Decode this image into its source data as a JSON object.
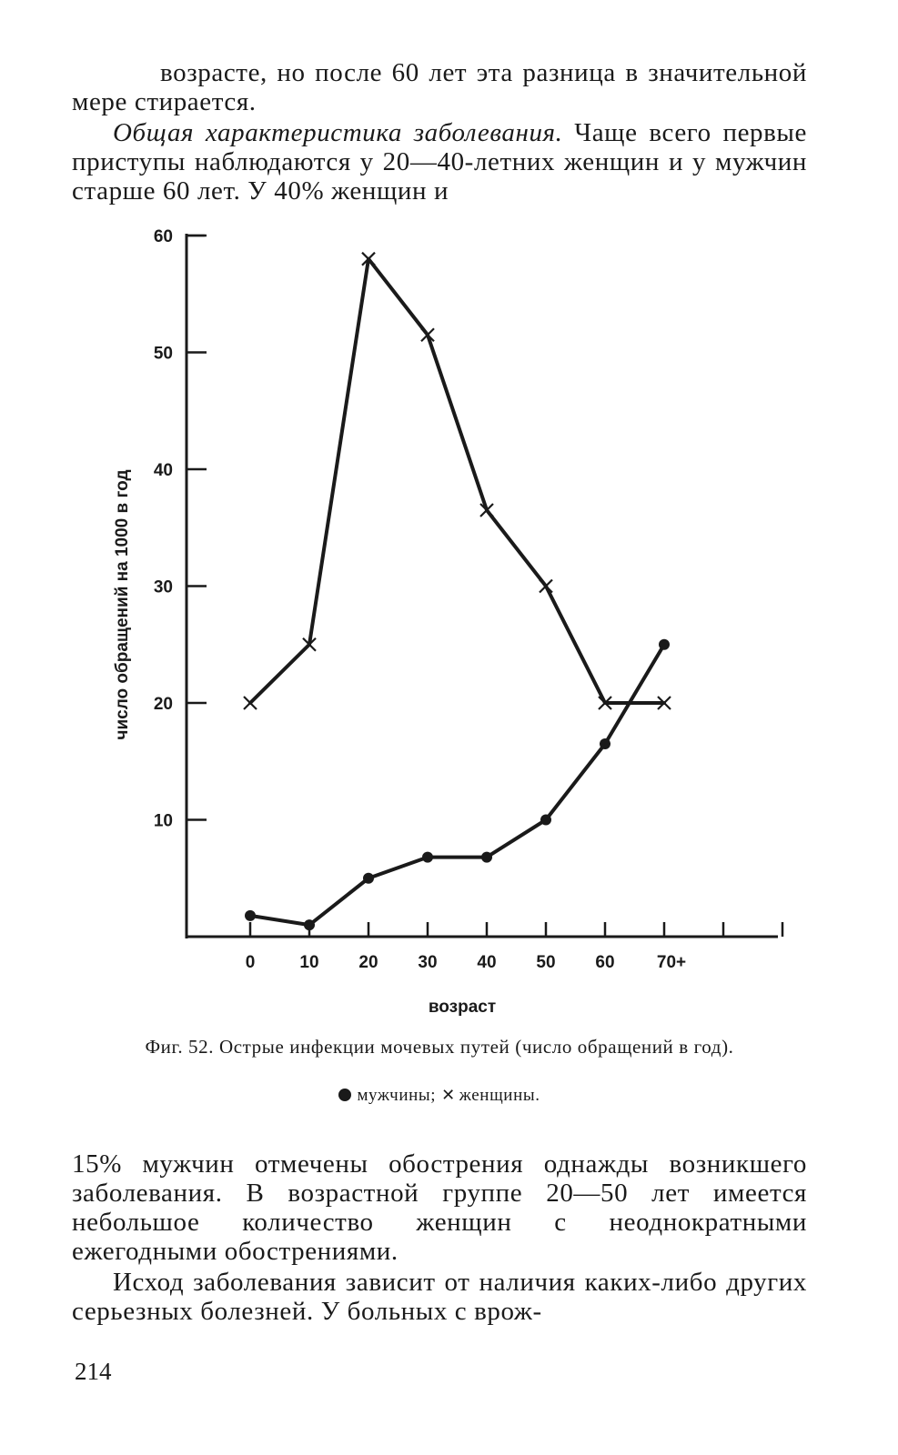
{
  "text_top": {
    "line1": "возрасте, но после 60 лет эта разница в значительной мере стирается.",
    "para2_italic": "Общая характеристика заболевания.",
    "para2_rest": " Чаще всего первые приступы наблюдаются у 20—40-летних женщин и у мужчин старше 60 лет. У 40% женщин и"
  },
  "chart_data": {
    "type": "line",
    "categories": [
      "0",
      "10",
      "20",
      "30",
      "40",
      "50",
      "60",
      "70+"
    ],
    "x": [
      0,
      10,
      20,
      30,
      40,
      50,
      60,
      70
    ],
    "series": [
      {
        "name": "женщины",
        "marker": "x",
        "values": [
          20,
          25,
          58,
          51.5,
          36.5,
          30,
          20,
          20
        ]
      },
      {
        "name": "мужчины",
        "marker": "dot",
        "values": [
          1.8,
          1,
          5,
          6.8,
          6.8,
          10,
          16.5,
          25
        ]
      }
    ],
    "yticks": [
      10,
      20,
      30,
      40,
      50,
      60
    ],
    "ylim": [
      0,
      60
    ],
    "xlabel": "возраст",
    "ylabel": "число обращений на 1000 в год",
    "grid": false
  },
  "caption": {
    "text": "Фиг. 52. Острые инфекции мочевых путей (число обращений в год).",
    "legend_men": "мужчины;",
    "legend_women": "женщины."
  },
  "text_bottom": {
    "para3": "15% мужчин отмечены обострения однажды возникшего заболевания. В возрастной группе 20—50 лет имеется небольшое количество женщин с неоднократными ежегодными обострениями.",
    "para4": "Исход заболевания зависит от наличия каких-либо других серьезных болезней. У больных с врож-"
  },
  "page_number": "214"
}
